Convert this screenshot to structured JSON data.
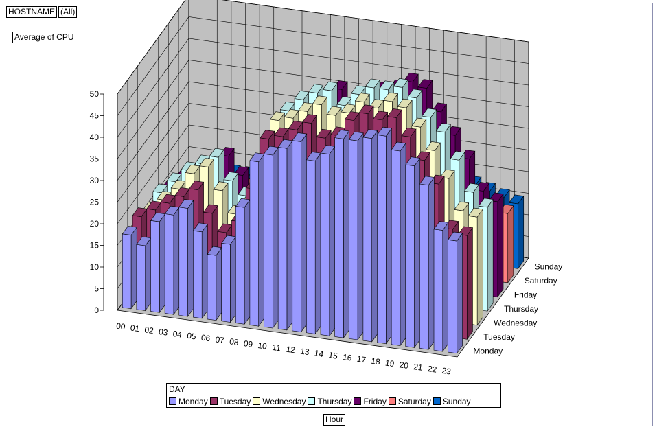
{
  "pivot": {
    "filter_field": "HOSTNAME",
    "filter_value": "(All)",
    "data_field": "Average of CPU",
    "series_field": "DAY",
    "category_field": "Hour"
  },
  "chart_data": {
    "type": "bar",
    "title": "",
    "xlabel": "Hour",
    "ylabel": "Average of CPU",
    "zlabel": "DAY",
    "ylim": [
      0,
      50
    ],
    "yticks": [
      "0",
      "5",
      "10",
      "15",
      "20",
      "25",
      "30",
      "35",
      "40",
      "45",
      "50"
    ],
    "grid": true,
    "legend_position": "bottom",
    "categories": [
      "00",
      "01",
      "02",
      "03",
      "04",
      "05",
      "06",
      "07",
      "08",
      "09",
      "10",
      "11",
      "12",
      "13",
      "14",
      "15",
      "16",
      "17",
      "18",
      "19",
      "20",
      "21",
      "22",
      "23"
    ],
    "series": [
      {
        "name": "Monday",
        "color": "#9999ff",
        "values": [
          17,
          15,
          21,
          23,
          25,
          20,
          15,
          18,
          27,
          38,
          40,
          42,
          44,
          40,
          42,
          46,
          46,
          47,
          48,
          45,
          42,
          38,
          28,
          26
        ]
      },
      {
        "name": "Tuesday",
        "color": "#993366",
        "values": [
          18,
          20,
          22,
          24,
          26,
          21,
          17,
          20,
          28,
          40,
          41,
          43,
          45,
          42,
          43,
          47,
          49,
          48,
          49,
          45,
          40,
          35,
          25,
          24
        ]
      },
      {
        "name": "Wednesday",
        "color": "#ffffcc",
        "values": [
          16,
          19,
          22,
          26,
          28,
          23,
          18,
          21,
          29,
          41,
          42,
          44,
          46,
          44,
          45,
          48,
          47,
          49,
          48,
          44,
          39,
          33,
          26,
          25
        ]
      },
      {
        "name": "Thursday",
        "color": "#ccffff",
        "values": [
          17,
          20,
          23,
          25,
          27,
          22,
          19,
          22,
          30,
          40,
          43,
          45,
          46,
          43,
          46,
          48,
          48,
          49,
          47,
          43,
          40,
          34,
          27,
          24
        ]
      },
      {
        "name": "Friday",
        "color": "#660066",
        "values": [
          15,
          18,
          20,
          22,
          24,
          20,
          16,
          19,
          26,
          37,
          39,
          41,
          43,
          40,
          41,
          44,
          45,
          47,
          46,
          41,
          36,
          31,
          24,
          22
        ]
      },
      {
        "name": "Saturday",
        "color": "#ff8080",
        "values": [
          12,
          13,
          14,
          14,
          15,
          14,
          13,
          14,
          16,
          18,
          20,
          21,
          22,
          22,
          23,
          23,
          23,
          22,
          22,
          21,
          20,
          19,
          17,
          16
        ]
      },
      {
        "name": "Sunday",
        "color": "#0066cc",
        "values": [
          11,
          12,
          12,
          13,
          13,
          13,
          12,
          13,
          14,
          16,
          18,
          19,
          20,
          20,
          21,
          21,
          21,
          21,
          20,
          19,
          18,
          17,
          16,
          15
        ]
      }
    ]
  }
}
